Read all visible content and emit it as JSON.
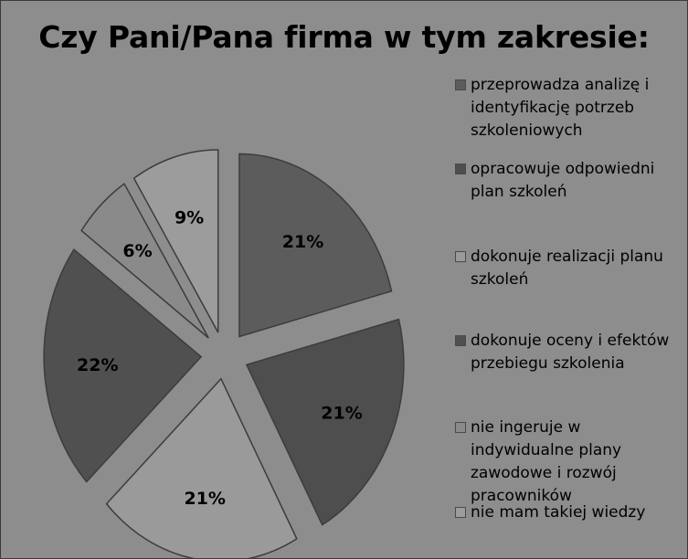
{
  "chart_data": {
    "type": "pie",
    "title": "Czy Pani/Pana firma w tym zakresie:",
    "categories": [
      "przeprowadza analizę i identyfikację potrzeb szkoleniowych",
      "opracowuje odpowiedni plan szkoleń",
      "dokonuje realizacji planu szkoleń",
      "dokonuje oceny i efektów przebiegu szkolenia",
      "nie ingeruje w indywidualne plany zawodowe i rozwój pracowników",
      "nie mam takiej wiedzy"
    ],
    "values": [
      21,
      21,
      21,
      22,
      6,
      9
    ],
    "data_labels": [
      "21%",
      "21%",
      "21%",
      "22%",
      "6%",
      "9%"
    ],
    "colors": [
      "#5c5c5c",
      "#4e4e4e",
      "#9a9a9a",
      "#505050",
      "#8a8a8a",
      "#9c9c9c"
    ],
    "legend_position": "right",
    "exploded": true
  }
}
